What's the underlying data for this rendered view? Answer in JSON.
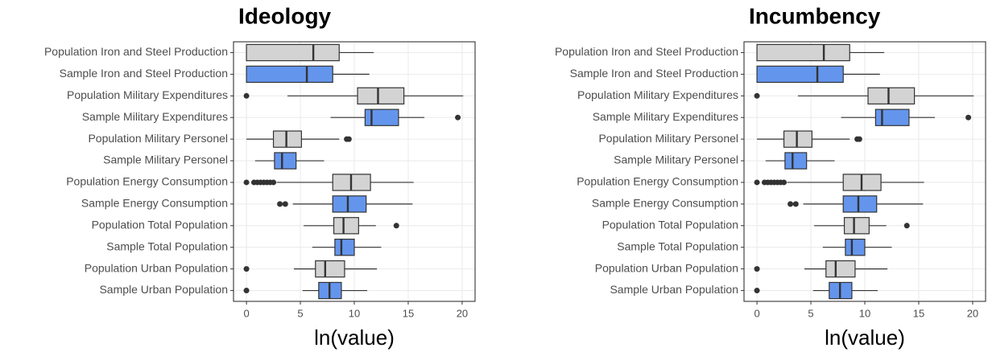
{
  "chart_data": [
    {
      "type": "box",
      "title": "Ideology",
      "x_label": "ln(value)",
      "categories": [
        "Population Iron and Steel Production",
        "Sample Iron and Steel Production",
        "Population Military Expenditures",
        "Sample Military Expenditures",
        "Population Military Personel",
        "Sample Military Personel",
        "Population Energy Consumption",
        "Sample Energy Consumption",
        "Population Total Population",
        "Sample Total Population",
        "Population Urban Population",
        "Sample Urban Population"
      ],
      "colors": [
        "#d3d3d3",
        "#6495ed",
        "#d3d3d3",
        "#6495ed",
        "#d3d3d3",
        "#6495ed",
        "#d3d3d3",
        "#6495ed",
        "#d3d3d3",
        "#6495ed",
        "#d3d3d3",
        "#6495ed"
      ],
      "boxes": [
        {
          "min": 0,
          "q1": 0,
          "median": 6.2,
          "q3": 8.6,
          "max": 11.8,
          "outliers": []
        },
        {
          "min": 0,
          "q1": 0,
          "median": 5.6,
          "q3": 8.0,
          "max": 11.4,
          "outliers": []
        },
        {
          "min": 3.8,
          "q1": 10.3,
          "median": 12.2,
          "q3": 14.6,
          "max": 20.1,
          "outliers": [
            0
          ]
        },
        {
          "min": 7.8,
          "q1": 11.0,
          "median": 11.6,
          "q3": 14.1,
          "max": 16.5,
          "outliers": [
            19.6
          ]
        },
        {
          "min": 0,
          "q1": 2.5,
          "median": 3.7,
          "q3": 5.1,
          "max": 8.6,
          "outliers": [
            9.3,
            9.5
          ]
        },
        {
          "min": 0.8,
          "q1": 2.6,
          "median": 3.3,
          "q3": 4.6,
          "max": 7.2,
          "outliers": []
        },
        {
          "min": 2.8,
          "q1": 8.0,
          "median": 9.7,
          "q3": 11.5,
          "max": 15.5,
          "outliers": [
            0,
            0.7,
            1.0,
            1.3,
            1.6,
            1.9,
            2.2,
            2.5
          ]
        },
        {
          "min": 4.3,
          "q1": 8.0,
          "median": 9.4,
          "q3": 11.1,
          "max": 15.4,
          "outliers": [
            3.1,
            3.6
          ]
        },
        {
          "min": 5.3,
          "q1": 8.1,
          "median": 9.0,
          "q3": 10.4,
          "max": 12.0,
          "outliers": [
            13.9
          ]
        },
        {
          "min": 6.1,
          "q1": 8.2,
          "median": 8.8,
          "q3": 10.0,
          "max": 12.5,
          "outliers": []
        },
        {
          "min": 4.4,
          "q1": 6.4,
          "median": 7.3,
          "q3": 9.1,
          "max": 12.1,
          "outliers": [
            0
          ]
        },
        {
          "min": 5.2,
          "q1": 6.7,
          "median": 7.7,
          "q3": 8.8,
          "max": 11.2,
          "outliers": [
            0
          ]
        }
      ],
      "xlim": [
        -1.2,
        21.2
      ],
      "xticks": [
        0,
        5,
        10,
        15,
        20
      ],
      "grid": true
    },
    {
      "type": "box",
      "title": "Incumbency",
      "x_label": "ln(value)",
      "categories": [
        "Population Iron and Steel Production",
        "Sample Iron and Steel Production",
        "Population Military Expenditures",
        "Sample Military Expenditures",
        "Population Military Personel",
        "Sample Military Personel",
        "Population Energy Consumption",
        "Sample Energy Consumption",
        "Population Total Population",
        "Sample Total Population",
        "Population Urban Population",
        "Sample Urban Population"
      ],
      "colors": [
        "#d3d3d3",
        "#6495ed",
        "#d3d3d3",
        "#6495ed",
        "#d3d3d3",
        "#6495ed",
        "#d3d3d3",
        "#6495ed",
        "#d3d3d3",
        "#6495ed",
        "#d3d3d3",
        "#6495ed"
      ],
      "boxes": [
        {
          "min": 0,
          "q1": 0,
          "median": 6.2,
          "q3": 8.6,
          "max": 11.8,
          "outliers": []
        },
        {
          "min": 0,
          "q1": 0,
          "median": 5.6,
          "q3": 8.0,
          "max": 11.4,
          "outliers": []
        },
        {
          "min": 3.8,
          "q1": 10.3,
          "median": 12.2,
          "q3": 14.6,
          "max": 20.1,
          "outliers": [
            0
          ]
        },
        {
          "min": 7.8,
          "q1": 11.0,
          "median": 11.6,
          "q3": 14.1,
          "max": 16.5,
          "outliers": [
            19.6
          ]
        },
        {
          "min": 0,
          "q1": 2.5,
          "median": 3.7,
          "q3": 5.1,
          "max": 8.6,
          "outliers": [
            9.3,
            9.5
          ]
        },
        {
          "min": 0.8,
          "q1": 2.6,
          "median": 3.3,
          "q3": 4.6,
          "max": 7.2,
          "outliers": []
        },
        {
          "min": 2.8,
          "q1": 8.0,
          "median": 9.7,
          "q3": 11.5,
          "max": 15.5,
          "outliers": [
            0,
            0.7,
            1.0,
            1.3,
            1.6,
            1.9,
            2.2,
            2.5
          ]
        },
        {
          "min": 4.3,
          "q1": 8.0,
          "median": 9.4,
          "q3": 11.1,
          "max": 15.4,
          "outliers": [
            3.1,
            3.6
          ]
        },
        {
          "min": 5.3,
          "q1": 8.1,
          "median": 9.0,
          "q3": 10.4,
          "max": 12.0,
          "outliers": [
            13.9
          ]
        },
        {
          "min": 6.1,
          "q1": 8.2,
          "median": 8.8,
          "q3": 10.0,
          "max": 12.5,
          "outliers": []
        },
        {
          "min": 4.4,
          "q1": 6.4,
          "median": 7.3,
          "q3": 9.1,
          "max": 12.1,
          "outliers": [
            0
          ]
        },
        {
          "min": 5.2,
          "q1": 6.7,
          "median": 7.7,
          "q3": 8.8,
          "max": 11.2,
          "outliers": [
            0
          ]
        }
      ],
      "xlim": [
        -1.2,
        21.2
      ],
      "xticks": [
        0,
        5,
        10,
        15,
        20
      ],
      "grid": true
    }
  ]
}
